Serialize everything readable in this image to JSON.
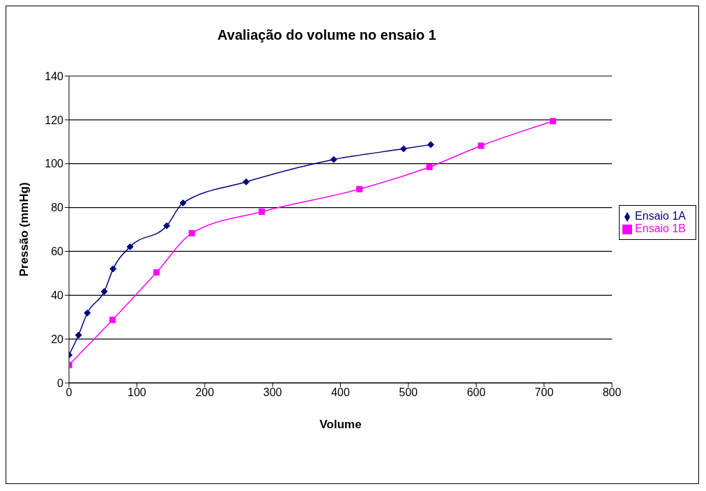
{
  "chart_data": {
    "type": "line",
    "title": "Avaliação do volume no ensaio 1",
    "xlabel": "Volume",
    "ylabel": "Pressão (mmHg)",
    "xlim": [
      0,
      800
    ],
    "xticks": [
      0,
      100,
      200,
      300,
      400,
      500,
      600,
      700,
      800
    ],
    "ylim": [
      0,
      140
    ],
    "yticks": [
      0,
      20,
      40,
      60,
      80,
      100,
      120,
      140
    ],
    "grid": "y",
    "legend": "right",
    "series": [
      {
        "name": "Ensaio 1A",
        "color": "#000080",
        "marker": "diamond",
        "x": [
          0,
          14,
          27,
          52,
          65,
          90,
          144,
          168,
          261,
          390,
          493,
          533
        ],
        "values": [
          12.7,
          21.8,
          31.9,
          41.7,
          52,
          62.1,
          71.7,
          82.1,
          91.7,
          101.9,
          106.8,
          108.7
        ]
      },
      {
        "name": "Ensaio 1B",
        "color": "#ff00ff",
        "marker": "square",
        "x": [
          0,
          64,
          129,
          181,
          284,
          428,
          531,
          607,
          713
        ],
        "values": [
          8.2,
          28.7,
          50.4,
          68.3,
          78.1,
          88.4,
          98.5,
          108.2,
          119.4
        ]
      }
    ]
  }
}
